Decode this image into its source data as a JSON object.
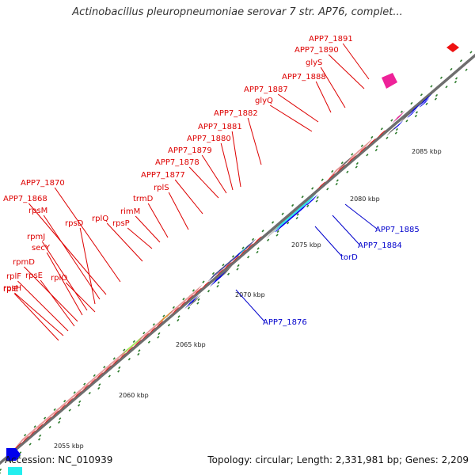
{
  "title": "Actinobacillus pleuropneumoniae serovar 7 str. AP76, complet...",
  "accession_text": "Accession: NC_010939",
  "summary_text": "Topology: circular; Length: 2,331,981 bp; Genes: 2,209",
  "colors": {
    "backbone": "#6e6e6e",
    "red": "#ee1111",
    "pink": "#ee8888",
    "navy": "#333388",
    "blue": "#0000ee",
    "cyan": "#22eeee",
    "gray": "#6a6a6a",
    "lightgray": "#cccccc",
    "magenta": "#ee2299",
    "orange": "#ee8811",
    "lime": "#99ee33",
    "tick": "#2a7a2a",
    "label_red": "#dd0000",
    "label_blue": "#0000cc"
  },
  "tick_labels": [
    "2055 kbp",
    "2060 kbp",
    "2065 kbp",
    "2070 kbp",
    "2075 kbp",
    "2080 kbp",
    "2085 kbp"
  ],
  "gene_labels_red": [
    "APP7_1891",
    "APP7_1890",
    "glyS",
    "APP7_1888",
    "APP7_1887",
    "glyQ",
    "APP7_1882",
    "APP7_1881",
    "APP7_1880",
    "APP7_1879",
    "APP7_1878",
    "APP7_1877",
    "rplS",
    "trmD",
    "rimM",
    "rpsP",
    "rplQ",
    "APP7_1870",
    "APP7_1868",
    "rpsM",
    "rpsD",
    "rpmJ",
    "secY",
    "rpmD",
    "rpsE",
    "rplF",
    "rplO",
    "rpsH",
    "rplE"
  ],
  "gene_labels_blue": [
    "APP7_1885",
    "APP7_1884",
    "torD",
    "APP7_1876"
  ]
}
